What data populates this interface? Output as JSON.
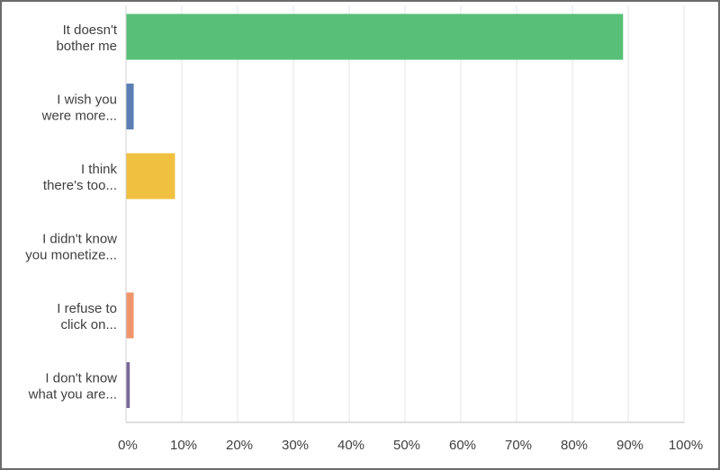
{
  "chart_data": {
    "type": "bar",
    "orientation": "horizontal",
    "categories": [
      [
        "It doesn't",
        "bother me"
      ],
      [
        "I wish you",
        "were more..."
      ],
      [
        "I think",
        "there's too..."
      ],
      [
        "I didn't know",
        "you monetize..."
      ],
      [
        "I refuse to",
        "click on..."
      ],
      [
        "I don't know",
        "what you are..."
      ]
    ],
    "values": [
      89,
      1.3,
      8.7,
      0,
      1.3,
      0.6
    ],
    "colors": [
      "#57bf77",
      "#5b7fb5",
      "#f0c040",
      "#e8685a",
      "#f0956a",
      "#7a6898"
    ],
    "xlim": [
      0,
      100
    ],
    "ticks": [
      0,
      10,
      20,
      30,
      40,
      50,
      60,
      70,
      80,
      90,
      100
    ],
    "tick_labels": [
      "0%",
      "10%",
      "20%",
      "30%",
      "40%",
      "50%",
      "60%",
      "70%",
      "80%",
      "90%",
      "100%"
    ],
    "grid": true,
    "title": "",
    "xlabel": "",
    "ylabel": ""
  }
}
